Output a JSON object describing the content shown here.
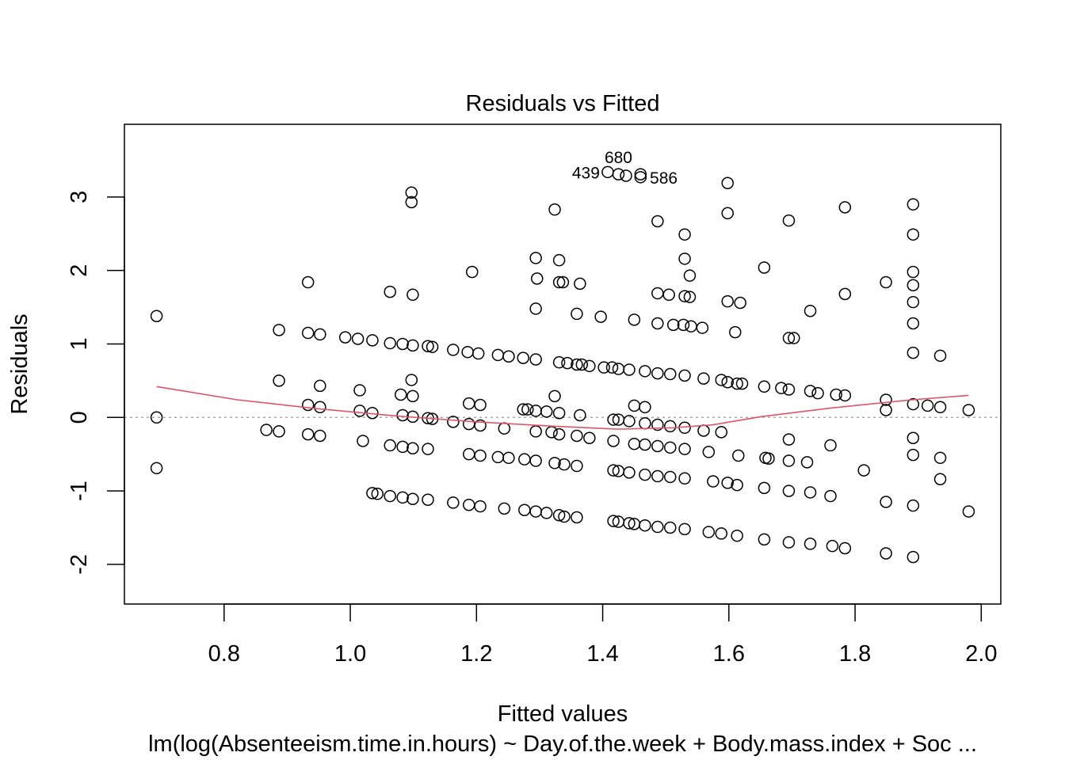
{
  "chart_data": {
    "type": "scatter",
    "title": "Residuals vs Fitted",
    "xlabel": "Fitted values",
    "ylabel": "Residuals",
    "subtitle": "lm(log(Absenteeism.time.in.hours) ~ Day.of.the.week + Body.mass.index + Soc ...",
    "xlim": [
      0.642,
      2.031
    ],
    "ylim": [
      -2.54,
      3.99
    ],
    "xticks": [
      0.8,
      1.0,
      1.2,
      1.4,
      1.6,
      1.8,
      2.0
    ],
    "xtick_labels": [
      "0.8",
      "1.0",
      "1.2",
      "1.4",
      "1.6",
      "1.8",
      "2.0"
    ],
    "yticks": [
      -2,
      -1,
      0,
      1,
      2,
      3
    ],
    "ytick_labels": [
      "-2",
      "-1",
      "0",
      "1",
      "2",
      "3"
    ],
    "grid": false,
    "reference_line": {
      "y": 0,
      "style": "dotted",
      "color": "#aaaaaa"
    },
    "smooth_color": "#DF536B",
    "point_color": "#000000",
    "smooth": [
      [
        0.693,
        0.42
      ],
      [
        0.821,
        0.24
      ],
      [
        0.947,
        0.12
      ],
      [
        1.073,
        0.02
      ],
      [
        1.198,
        -0.06
      ],
      [
        1.324,
        -0.12
      ],
      [
        1.425,
        -0.16
      ],
      [
        1.512,
        -0.14
      ],
      [
        1.575,
        -0.1
      ],
      [
        1.651,
        0.01
      ],
      [
        1.764,
        0.13
      ],
      [
        1.89,
        0.24
      ],
      [
        1.98,
        0.3
      ]
    ],
    "annotations": [
      {
        "label": "439",
        "x": 1.408,
        "y": 3.34
      },
      {
        "label": "680",
        "x": 1.425,
        "y": 3.31
      },
      {
        "label": "586",
        "x": 1.437,
        "y": 3.29
      }
    ],
    "points": [
      [
        0.693,
        1.38
      ],
      [
        0.693,
        0.0
      ],
      [
        0.693,
        -0.69
      ],
      [
        0.867,
        -0.17
      ],
      [
        0.887,
        -0.19
      ],
      [
        0.887,
        1.19
      ],
      [
        0.887,
        0.5
      ],
      [
        0.933,
        1.84
      ],
      [
        0.933,
        1.15
      ],
      [
        0.933,
        0.17
      ],
      [
        0.933,
        -0.23
      ],
      [
        0.952,
        1.13
      ],
      [
        0.952,
        0.43
      ],
      [
        0.952,
        0.14
      ],
      [
        0.952,
        -0.25
      ],
      [
        0.992,
        1.09
      ],
      [
        1.012,
        1.07
      ],
      [
        1.015,
        0.37
      ],
      [
        1.015,
        0.09
      ],
      [
        1.02,
        -0.32
      ],
      [
        1.035,
        1.05
      ],
      [
        1.035,
        0.06
      ],
      [
        1.035,
        -1.03
      ],
      [
        1.043,
        -1.04
      ],
      [
        1.063,
        1.71
      ],
      [
        1.063,
        1.01
      ],
      [
        1.063,
        -0.38
      ],
      [
        1.063,
        -1.07
      ],
      [
        1.08,
        0.31
      ],
      [
        1.083,
        1.0
      ],
      [
        1.083,
        0.03
      ],
      [
        1.083,
        -0.4
      ],
      [
        1.083,
        -1.09
      ],
      [
        1.097,
        3.06
      ],
      [
        1.097,
        2.93
      ],
      [
        1.097,
        0.51
      ],
      [
        1.099,
        1.67
      ],
      [
        1.099,
        0.98
      ],
      [
        1.099,
        0.29
      ],
      [
        1.099,
        0.01
      ],
      [
        1.099,
        -0.42
      ],
      [
        1.099,
        -1.11
      ],
      [
        1.123,
        0.97
      ],
      [
        1.123,
        -0.01
      ],
      [
        1.123,
        -0.43
      ],
      [
        1.123,
        -1.12
      ],
      [
        1.13,
        0.96
      ],
      [
        1.13,
        -0.02
      ],
      [
        1.163,
        0.92
      ],
      [
        1.163,
        -0.06
      ],
      [
        1.163,
        -1.16
      ],
      [
        1.186,
        0.89
      ],
      [
        1.188,
        0.19
      ],
      [
        1.188,
        -0.09
      ],
      [
        1.188,
        -0.5
      ],
      [
        1.188,
        -1.19
      ],
      [
        1.193,
        1.98
      ],
      [
        1.203,
        0.87
      ],
      [
        1.206,
        0.17
      ],
      [
        1.206,
        -0.11
      ],
      [
        1.206,
        -0.52
      ],
      [
        1.206,
        -1.21
      ],
      [
        1.234,
        0.85
      ],
      [
        1.234,
        -0.54
      ],
      [
        1.244,
        -0.15
      ],
      [
        1.244,
        -1.24
      ],
      [
        1.251,
        0.83
      ],
      [
        1.251,
        -0.55
      ],
      [
        1.274,
        0.81
      ],
      [
        1.274,
        0.11
      ],
      [
        1.276,
        -0.57
      ],
      [
        1.276,
        -1.26
      ],
      [
        1.281,
        0.11
      ],
      [
        1.294,
        2.17
      ],
      [
        1.294,
        1.48
      ],
      [
        1.294,
        0.79
      ],
      [
        1.294,
        0.09
      ],
      [
        1.294,
        -0.19
      ],
      [
        1.294,
        -0.59
      ],
      [
        1.294,
        -1.28
      ],
      [
        1.296,
        1.89
      ],
      [
        1.311,
        0.08
      ],
      [
        1.311,
        -1.3
      ],
      [
        1.319,
        -0.2
      ],
      [
        1.324,
        2.83
      ],
      [
        1.324,
        0.29
      ],
      [
        1.324,
        -0.62
      ],
      [
        1.331,
        2.14
      ],
      [
        1.331,
        1.84
      ],
      [
        1.331,
        0.06
      ],
      [
        1.331,
        0.75
      ],
      [
        1.331,
        -0.23
      ],
      [
        1.331,
        -1.33
      ],
      [
        1.337,
        1.84
      ],
      [
        1.339,
        -0.64
      ],
      [
        1.339,
        -1.35
      ],
      [
        1.344,
        0.74
      ],
      [
        1.359,
        1.41
      ],
      [
        1.359,
        0.72
      ],
      [
        1.359,
        -0.25
      ],
      [
        1.359,
        -0.66
      ],
      [
        1.359,
        -1.36
      ],
      [
        1.364,
        1.82
      ],
      [
        1.364,
        0.03
      ],
      [
        1.367,
        0.72
      ],
      [
        1.379,
        -0.28
      ],
      [
        1.379,
        0.7
      ],
      [
        1.397,
        1.37
      ],
      [
        1.402,
        0.68
      ],
      [
        1.415,
        0.68
      ],
      [
        1.417,
        -0.03
      ],
      [
        1.417,
        -0.32
      ],
      [
        1.417,
        -0.72
      ],
      [
        1.417,
        -1.41
      ],
      [
        1.425,
        0.66
      ],
      [
        1.425,
        -0.03
      ],
      [
        1.425,
        -0.73
      ],
      [
        1.425,
        -1.42
      ],
      [
        1.408,
        3.34
      ],
      [
        1.425,
        3.31
      ],
      [
        1.437,
        3.29
      ],
      [
        1.442,
        0.65
      ],
      [
        1.442,
        -0.05
      ],
      [
        1.442,
        -0.75
      ],
      [
        1.442,
        -1.44
      ],
      [
        1.45,
        1.33
      ],
      [
        1.45,
        0.16
      ],
      [
        1.45,
        -0.36
      ],
      [
        1.45,
        -1.45
      ],
      [
        1.46,
        3.31
      ],
      [
        1.46,
        3.27
      ],
      [
        1.467,
        0.63
      ],
      [
        1.467,
        -0.08
      ],
      [
        1.467,
        0.14
      ],
      [
        1.467,
        -0.37
      ],
      [
        1.467,
        -0.78
      ],
      [
        1.467,
        -1.47
      ],
      [
        1.487,
        2.67
      ],
      [
        1.487,
        1.69
      ],
      [
        1.487,
        1.28
      ],
      [
        1.487,
        0.6
      ],
      [
        1.487,
        -0.1
      ],
      [
        1.487,
        -0.39
      ],
      [
        1.487,
        -0.8
      ],
      [
        1.487,
        -1.49
      ],
      [
        1.505,
        1.67
      ],
      [
        1.507,
        0.59
      ],
      [
        1.507,
        -0.12
      ],
      [
        1.507,
        -0.41
      ],
      [
        1.507,
        -0.81
      ],
      [
        1.507,
        -1.5
      ],
      [
        1.512,
        1.26
      ],
      [
        1.528,
        1.26
      ],
      [
        1.53,
        2.49
      ],
      [
        1.53,
        2.16
      ],
      [
        1.53,
        1.65
      ],
      [
        1.53,
        0.57
      ],
      [
        1.53,
        -0.14
      ],
      [
        1.53,
        -0.43
      ],
      [
        1.53,
        -0.83
      ],
      [
        1.53,
        -1.52
      ],
      [
        1.538,
        1.93
      ],
      [
        1.538,
        1.64
      ],
      [
        1.54,
        1.24
      ],
      [
        1.558,
        1.22
      ],
      [
        1.56,
        0.53
      ],
      [
        1.56,
        -0.18
      ],
      [
        1.568,
        -0.47
      ],
      [
        1.568,
        -1.56
      ],
      [
        1.575,
        -0.87
      ],
      [
        1.588,
        0.51
      ],
      [
        1.588,
        -0.2
      ],
      [
        1.588,
        -1.58
      ],
      [
        1.598,
        3.19
      ],
      [
        1.598,
        2.78
      ],
      [
        1.598,
        1.58
      ],
      [
        1.598,
        0.48
      ],
      [
        1.598,
        -0.89
      ],
      [
        1.61,
        1.16
      ],
      [
        1.613,
        0.46
      ],
      [
        1.613,
        -0.92
      ],
      [
        1.613,
        -1.61
      ],
      [
        1.615,
        -0.52
      ],
      [
        1.618,
        1.56
      ],
      [
        1.621,
        0.46
      ],
      [
        1.656,
        2.04
      ],
      [
        1.656,
        0.42
      ],
      [
        1.656,
        -0.96
      ],
      [
        1.656,
        -1.66
      ],
      [
        1.658,
        -0.55
      ],
      [
        1.663,
        -0.56
      ],
      [
        1.683,
        0.4
      ],
      [
        1.695,
        2.68
      ],
      [
        1.695,
        1.08
      ],
      [
        1.695,
        0.38
      ],
      [
        1.695,
        -0.3
      ],
      [
        1.695,
        -0.59
      ],
      [
        1.695,
        -1.0
      ],
      [
        1.695,
        -1.7
      ],
      [
        1.703,
        1.08
      ],
      [
        1.724,
        -0.61
      ],
      [
        1.729,
        1.45
      ],
      [
        1.729,
        0.36
      ],
      [
        1.729,
        -1.02
      ],
      [
        1.729,
        -1.72
      ],
      [
        1.741,
        0.33
      ],
      [
        1.761,
        -0.38
      ],
      [
        1.761,
        -1.07
      ],
      [
        1.764,
        -1.75
      ],
      [
        1.77,
        0.31
      ],
      [
        1.784,
        2.86
      ],
      [
        1.784,
        1.68
      ],
      [
        1.784,
        0.3
      ],
      [
        1.784,
        -1.78
      ],
      [
        1.814,
        -0.72
      ],
      [
        1.849,
        1.84
      ],
      [
        1.849,
        0.24
      ],
      [
        1.849,
        0.1
      ],
      [
        1.849,
        -1.15
      ],
      [
        1.849,
        -1.85
      ],
      [
        1.892,
        2.9
      ],
      [
        1.892,
        2.49
      ],
      [
        1.892,
        1.98
      ],
      [
        1.892,
        1.8
      ],
      [
        1.892,
        1.57
      ],
      [
        1.892,
        1.28
      ],
      [
        1.892,
        0.88
      ],
      [
        1.892,
        0.18
      ],
      [
        1.892,
        -0.28
      ],
      [
        1.892,
        -0.51
      ],
      [
        1.892,
        -1.2
      ],
      [
        1.892,
        -1.9
      ],
      [
        1.915,
        0.16
      ],
      [
        1.935,
        0.84
      ],
      [
        1.935,
        0.14
      ],
      [
        1.935,
        -0.55
      ],
      [
        1.935,
        -0.84
      ],
      [
        1.98,
        0.1
      ],
      [
        1.98,
        -1.28
      ]
    ]
  }
}
